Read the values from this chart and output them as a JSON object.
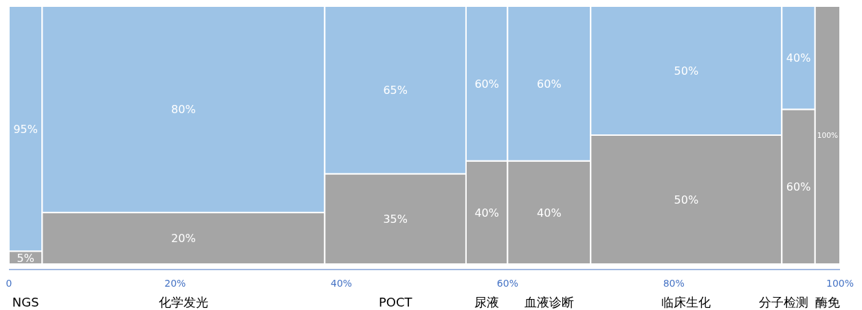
{
  "chart_data": {
    "type": "bar",
    "stacked": true,
    "x": [
      2,
      21,
      46.5,
      57.5,
      65,
      81.5,
      95,
      98.5
    ],
    "xlim": [
      0,
      100
    ],
    "xticks": [
      {
        "value": 0,
        "label": "0"
      },
      {
        "value": 20,
        "label": "20%"
      },
      {
        "value": 40,
        "label": "40%"
      },
      {
        "value": 60,
        "label": "60%"
      },
      {
        "value": 80,
        "label": "80%"
      },
      {
        "value": 100,
        "label": "100%"
      }
    ],
    "series": [
      {
        "color": "#a5a5a5",
        "values": [
          5,
          20,
          35,
          40,
          40,
          50,
          60,
          100
        ],
        "value_labels": [
          "5%",
          "20%",
          "35%",
          "40%",
          "40%",
          "50%",
          "60%",
          "100%"
        ]
      },
      {
        "color": "#9dc3e6",
        "values": [
          95,
          80,
          65,
          60,
          60,
          50,
          40,
          null
        ],
        "value_labels": [
          "95%",
          "80%",
          "65%",
          "60%",
          "60%",
          "50%",
          "40%",
          null
        ]
      }
    ],
    "annotations": [
      "NGS",
      "化学发光",
      "POCT",
      "尿液",
      "血液诊断",
      "临床生化",
      "分子检测",
      "酶免"
    ]
  }
}
